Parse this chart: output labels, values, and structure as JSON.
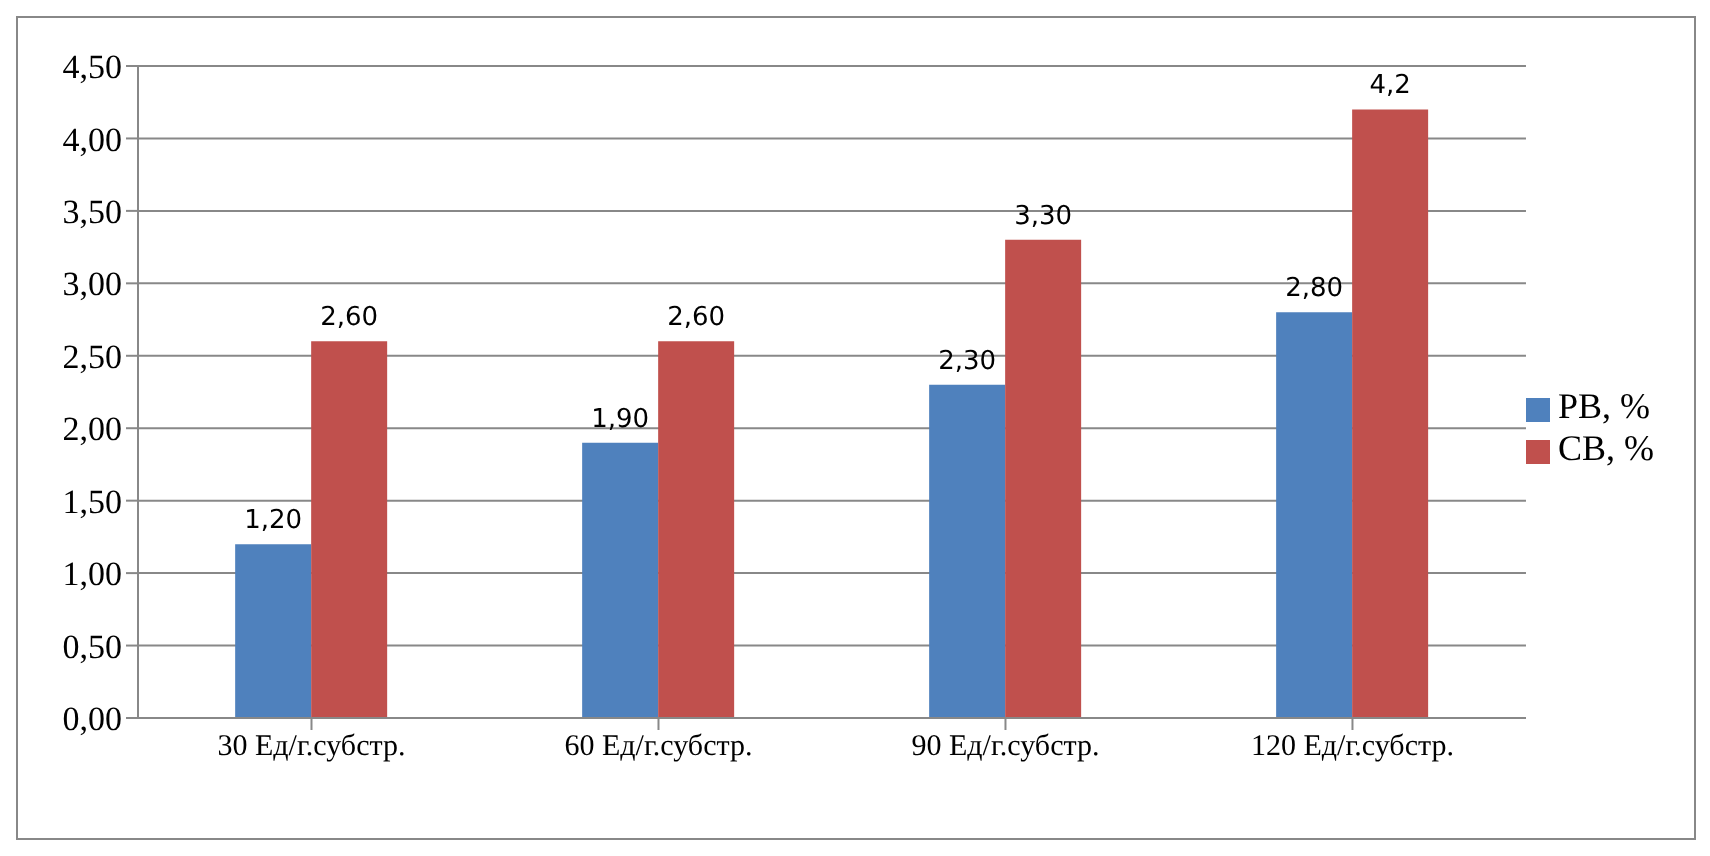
{
  "chart_data": {
    "type": "bar",
    "categories": [
      "30 Ед/г.субстр.",
      "60 Ед/г.субстр.",
      "90 Ед/г.субстр.",
      "120 Ед/г.субстр."
    ],
    "series": [
      {
        "name": "РВ, %",
        "color": "#4f81bd",
        "values": [
          1.2,
          1.9,
          2.3,
          2.8
        ],
        "value_labels": [
          "1,20",
          "1,90",
          "2,30",
          "2,80"
        ]
      },
      {
        "name": "СВ, %",
        "color": "#c0504d",
        "values": [
          2.6,
          2.6,
          3.3,
          4.2
        ],
        "value_labels": [
          "2,60",
          "2,60",
          "3,30",
          "4,2"
        ]
      }
    ],
    "ylim": [
      0,
      4.5
    ],
    "yticks": [
      {
        "value": 0,
        "label": "0,00"
      },
      {
        "value": 0.5,
        "label": "0,50"
      },
      {
        "value": 1,
        "label": "1,00"
      },
      {
        "value": 1.5,
        "label": "1,50"
      },
      {
        "value": 2,
        "label": "2,00"
      },
      {
        "value": 2.5,
        "label": "2,50"
      },
      {
        "value": 3,
        "label": "3,00"
      },
      {
        "value": 3.5,
        "label": "3,50"
      },
      {
        "value": 4,
        "label": "4,00"
      },
      {
        "value": 4.5,
        "label": "4,50"
      }
    ],
    "grid": "y",
    "legend": "right"
  }
}
